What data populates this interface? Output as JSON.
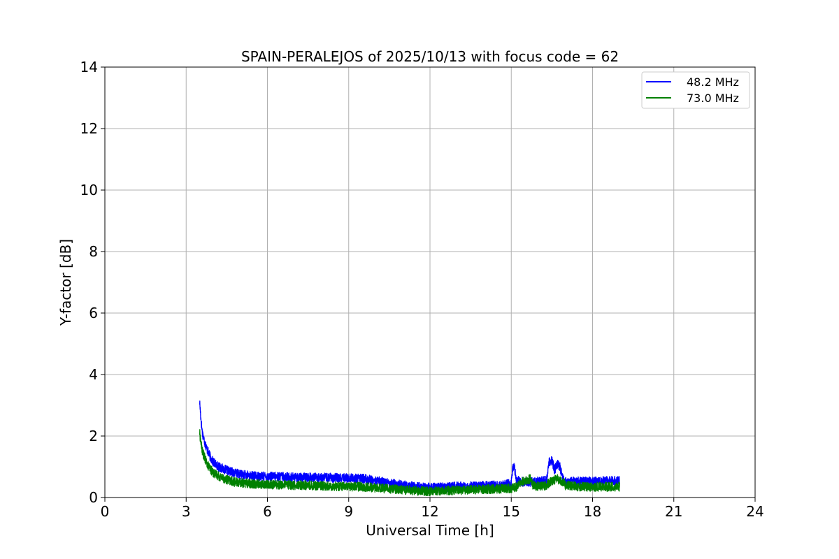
{
  "chart_data": {
    "type": "line",
    "title": "SPAIN-PERALEJOS of 2025/10/13 with focus code = 62",
    "xlabel": "Universal Time [h]",
    "ylabel": "Y-factor [dB]",
    "xlim": [
      0,
      24
    ],
    "ylim": [
      0,
      14
    ],
    "xticks": [
      0,
      3,
      6,
      9,
      12,
      15,
      18,
      21,
      24
    ],
    "yticks": [
      0,
      2,
      4,
      6,
      8,
      10,
      12,
      14
    ],
    "grid": true,
    "legend_position": "top-right",
    "series": [
      {
        "name": "48.2 MHz",
        "color": "#0000ff",
        "noise_band": 0.15,
        "points": [
          [
            3.5,
            3.1
          ],
          [
            3.55,
            2.5
          ],
          [
            3.6,
            2.1
          ],
          [
            3.7,
            1.75
          ],
          [
            3.8,
            1.5
          ],
          [
            3.9,
            1.3
          ],
          [
            4.0,
            1.15
          ],
          [
            4.2,
            1.0
          ],
          [
            4.4,
            0.92
          ],
          [
            4.6,
            0.85
          ],
          [
            4.8,
            0.8
          ],
          [
            5.0,
            0.75
          ],
          [
            5.5,
            0.7
          ],
          [
            6.0,
            0.68
          ],
          [
            6.5,
            0.68
          ],
          [
            7.0,
            0.66
          ],
          [
            7.5,
            0.65
          ],
          [
            8.0,
            0.65
          ],
          [
            8.5,
            0.64
          ],
          [
            9.0,
            0.63
          ],
          [
            9.5,
            0.62
          ],
          [
            10.0,
            0.55
          ],
          [
            10.5,
            0.48
          ],
          [
            11.0,
            0.4
          ],
          [
            11.5,
            0.35
          ],
          [
            12.0,
            0.32
          ],
          [
            12.5,
            0.33
          ],
          [
            13.0,
            0.36
          ],
          [
            13.5,
            0.37
          ],
          [
            14.0,
            0.38
          ],
          [
            14.5,
            0.4
          ],
          [
            15.0,
            0.45
          ],
          [
            15.05,
            0.9
          ],
          [
            15.1,
            1.05
          ],
          [
            15.2,
            0.55
          ],
          [
            15.5,
            0.5
          ],
          [
            16.0,
            0.52
          ],
          [
            16.3,
            0.55
          ],
          [
            16.4,
            1.15
          ],
          [
            16.5,
            1.2
          ],
          [
            16.6,
            0.9
          ],
          [
            16.7,
            1.1
          ],
          [
            16.8,
            1.0
          ],
          [
            16.9,
            0.6
          ],
          [
            17.0,
            0.52
          ],
          [
            17.5,
            0.52
          ],
          [
            18.0,
            0.53
          ],
          [
            18.5,
            0.55
          ],
          [
            19.0,
            0.55
          ]
        ]
      },
      {
        "name": "73.0 MHz",
        "color": "#008000",
        "noise_band": 0.15,
        "points": [
          [
            3.5,
            2.1
          ],
          [
            3.55,
            1.75
          ],
          [
            3.6,
            1.5
          ],
          [
            3.7,
            1.25
          ],
          [
            3.8,
            1.05
          ],
          [
            3.9,
            0.92
          ],
          [
            4.0,
            0.8
          ],
          [
            4.2,
            0.7
          ],
          [
            4.4,
            0.62
          ],
          [
            4.6,
            0.55
          ],
          [
            4.8,
            0.5
          ],
          [
            5.0,
            0.48
          ],
          [
            5.5,
            0.45
          ],
          [
            6.0,
            0.42
          ],
          [
            6.5,
            0.42
          ],
          [
            7.0,
            0.4
          ],
          [
            7.5,
            0.4
          ],
          [
            8.0,
            0.38
          ],
          [
            8.5,
            0.37
          ],
          [
            9.0,
            0.36
          ],
          [
            9.5,
            0.35
          ],
          [
            10.0,
            0.32
          ],
          [
            10.5,
            0.28
          ],
          [
            11.0,
            0.25
          ],
          [
            11.5,
            0.22
          ],
          [
            12.0,
            0.2
          ],
          [
            12.5,
            0.22
          ],
          [
            13.0,
            0.24
          ],
          [
            13.5,
            0.25
          ],
          [
            14.0,
            0.27
          ],
          [
            14.5,
            0.28
          ],
          [
            15.0,
            0.3
          ],
          [
            15.2,
            0.35
          ],
          [
            15.4,
            0.5
          ],
          [
            15.5,
            0.55
          ],
          [
            15.7,
            0.6
          ],
          [
            15.8,
            0.4
          ],
          [
            16.0,
            0.35
          ],
          [
            16.3,
            0.4
          ],
          [
            16.5,
            0.55
          ],
          [
            16.7,
            0.6
          ],
          [
            16.9,
            0.5
          ],
          [
            17.0,
            0.4
          ],
          [
            17.5,
            0.35
          ],
          [
            18.0,
            0.35
          ],
          [
            18.5,
            0.35
          ],
          [
            19.0,
            0.35
          ]
        ]
      }
    ]
  }
}
